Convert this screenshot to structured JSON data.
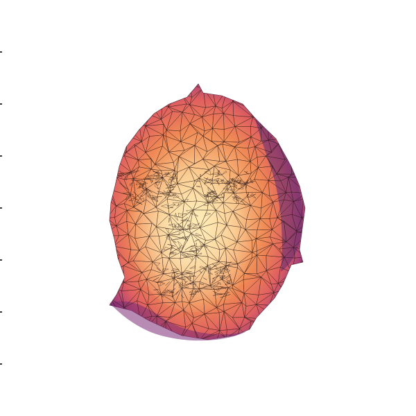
{
  "figure": {
    "subject": "face-mesh",
    "colormap": "magma",
    "colors": {
      "background": "#ffffff",
      "rim": "#5c2a72",
      "rim_light": "#a23d79",
      "mid": "#e06060",
      "warm": "#f08a55",
      "light": "#f9c184",
      "highlight": "#fde2a5",
      "edge": "#2b1a18"
    },
    "left_tick_count": 7
  }
}
